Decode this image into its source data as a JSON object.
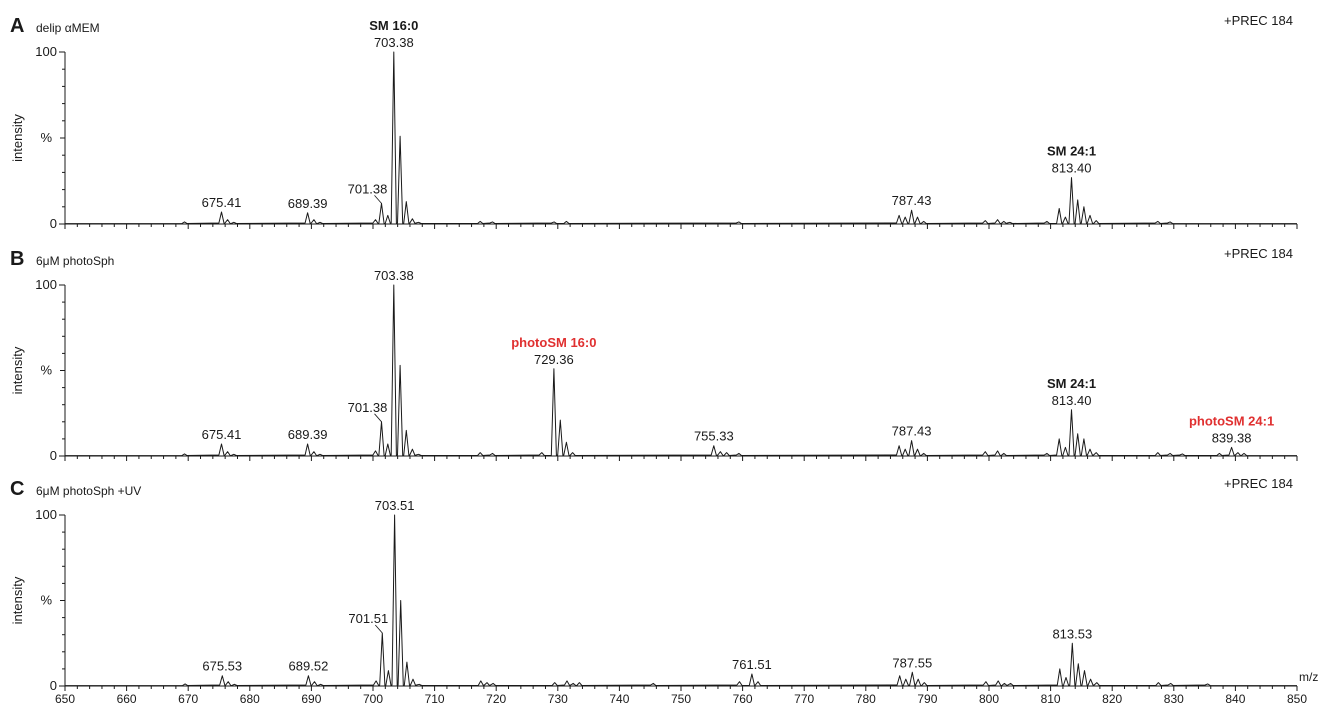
{
  "figure": {
    "xlabel": "m/z",
    "ylabel": "intensity",
    "ytick_labels": [
      "0",
      "%",
      "100"
    ],
    "x_ticks": [
      650,
      660,
      670,
      680,
      690,
      700,
      710,
      720,
      730,
      740,
      750,
      760,
      770,
      780,
      790,
      800,
      810,
      820,
      830,
      840,
      850
    ]
  },
  "colors": {
    "trace": "#1a1a1a",
    "text": "#1a1a1a",
    "highlight": "#e03030"
  },
  "chart_data": [
    {
      "type": "line",
      "panel_letter": "A",
      "sample_label": "delip αMEM",
      "scan_label": "+PREC 184",
      "xlim": [
        650,
        850
      ],
      "ylim": [
        0,
        100
      ],
      "peaks": [
        {
          "mz": 669.4,
          "y": 1.2
        },
        {
          "mz": 675.41,
          "y": 7
        },
        {
          "mz": 676.4,
          "y": 2.5
        },
        {
          "mz": 677.4,
          "y": 1
        },
        {
          "mz": 689.39,
          "y": 6.5
        },
        {
          "mz": 690.4,
          "y": 2.5
        },
        {
          "mz": 691.4,
          "y": 1
        },
        {
          "mz": 700.4,
          "y": 2.5
        },
        {
          "mz": 701.38,
          "y": 12
        },
        {
          "mz": 702.4,
          "y": 5
        },
        {
          "mz": 703.38,
          "y": 100
        },
        {
          "mz": 704.4,
          "y": 51
        },
        {
          "mz": 705.4,
          "y": 13
        },
        {
          "mz": 706.4,
          "y": 3
        },
        {
          "mz": 707.4,
          "y": 1
        },
        {
          "mz": 717.4,
          "y": 1.5
        },
        {
          "mz": 719.4,
          "y": 1.2
        },
        {
          "mz": 729.4,
          "y": 1.2
        },
        {
          "mz": 731.4,
          "y": 1.5
        },
        {
          "mz": 759.4,
          "y": 1.2
        },
        {
          "mz": 785.4,
          "y": 5
        },
        {
          "mz": 786.4,
          "y": 4
        },
        {
          "mz": 787.43,
          "y": 8
        },
        {
          "mz": 788.4,
          "y": 4
        },
        {
          "mz": 789.4,
          "y": 1.5
        },
        {
          "mz": 799.4,
          "y": 2
        },
        {
          "mz": 801.4,
          "y": 2.5
        },
        {
          "mz": 802.4,
          "y": 1.5
        },
        {
          "mz": 803.4,
          "y": 1
        },
        {
          "mz": 809.4,
          "y": 1.5
        },
        {
          "mz": 811.4,
          "y": 9
        },
        {
          "mz": 812.4,
          "y": 4
        },
        {
          "mz": 813.4,
          "y": 27
        },
        {
          "mz": 814.4,
          "y": 14
        },
        {
          "mz": 815.4,
          "y": 10
        },
        {
          "mz": 816.4,
          "y": 5
        },
        {
          "mz": 817.4,
          "y": 2
        },
        {
          "mz": 827.4,
          "y": 1.5
        },
        {
          "mz": 829.4,
          "y": 1.2
        }
      ],
      "annotations": [
        {
          "label": "",
          "value": "675.41",
          "mz": 675.41,
          "y": 7,
          "color": "#1a1a1a"
        },
        {
          "label": "",
          "value": "689.39",
          "mz": 689.39,
          "y": 6.5,
          "color": "#1a1a1a"
        },
        {
          "label": "",
          "value": "701.38",
          "mz": 701.38,
          "y": 12,
          "color": "#1a1a1a",
          "leader": true
        },
        {
          "label": "SM 16:0",
          "value": "703.38",
          "mz": 703.38,
          "y": 100,
          "color": "#1a1a1a"
        },
        {
          "label": "",
          "value": "787.43",
          "mz": 787.43,
          "y": 8,
          "color": "#1a1a1a"
        },
        {
          "label": "SM 24:1",
          "value": "813.40",
          "mz": 813.4,
          "y": 27,
          "color": "#1a1a1a"
        }
      ]
    },
    {
      "type": "line",
      "panel_letter": "B",
      "sample_label": "6μM photoSph",
      "scan_label": "+PREC 184",
      "xlim": [
        650,
        850
      ],
      "ylim": [
        0,
        100
      ],
      "peaks": [
        {
          "mz": 669.4,
          "y": 1.2
        },
        {
          "mz": 675.41,
          "y": 7
        },
        {
          "mz": 676.4,
          "y": 2.5
        },
        {
          "mz": 677.4,
          "y": 1
        },
        {
          "mz": 689.39,
          "y": 7
        },
        {
          "mz": 690.4,
          "y": 2.5
        },
        {
          "mz": 691.4,
          "y": 1
        },
        {
          "mz": 700.4,
          "y": 3
        },
        {
          "mz": 701.38,
          "y": 20
        },
        {
          "mz": 702.4,
          "y": 7
        },
        {
          "mz": 703.38,
          "y": 100
        },
        {
          "mz": 704.4,
          "y": 53
        },
        {
          "mz": 705.4,
          "y": 15
        },
        {
          "mz": 706.4,
          "y": 4
        },
        {
          "mz": 707.4,
          "y": 1
        },
        {
          "mz": 717.4,
          "y": 2
        },
        {
          "mz": 719.4,
          "y": 1.5
        },
        {
          "mz": 727.4,
          "y": 2
        },
        {
          "mz": 729.36,
          "y": 51
        },
        {
          "mz": 730.4,
          "y": 21
        },
        {
          "mz": 731.4,
          "y": 8
        },
        {
          "mz": 732.4,
          "y": 2
        },
        {
          "mz": 755.33,
          "y": 6
        },
        {
          "mz": 756.4,
          "y": 2.5
        },
        {
          "mz": 757.4,
          "y": 2
        },
        {
          "mz": 759.4,
          "y": 1.5
        },
        {
          "mz": 785.4,
          "y": 6
        },
        {
          "mz": 786.4,
          "y": 4
        },
        {
          "mz": 787.43,
          "y": 9
        },
        {
          "mz": 788.4,
          "y": 4
        },
        {
          "mz": 789.4,
          "y": 1.5
        },
        {
          "mz": 799.4,
          "y": 2.5
        },
        {
          "mz": 801.4,
          "y": 3
        },
        {
          "mz": 802.4,
          "y": 1.5
        },
        {
          "mz": 809.4,
          "y": 1.5
        },
        {
          "mz": 811.4,
          "y": 10
        },
        {
          "mz": 812.4,
          "y": 5
        },
        {
          "mz": 813.4,
          "y": 27
        },
        {
          "mz": 814.4,
          "y": 13
        },
        {
          "mz": 815.4,
          "y": 10
        },
        {
          "mz": 816.4,
          "y": 4
        },
        {
          "mz": 817.4,
          "y": 2
        },
        {
          "mz": 827.4,
          "y": 2
        },
        {
          "mz": 829.4,
          "y": 1.5
        },
        {
          "mz": 831.4,
          "y": 1.2
        },
        {
          "mz": 837.4,
          "y": 1.5
        },
        {
          "mz": 839.38,
          "y": 5
        },
        {
          "mz": 840.4,
          "y": 2
        },
        {
          "mz": 841.4,
          "y": 1.5
        }
      ],
      "annotations": [
        {
          "label": "",
          "value": "675.41",
          "mz": 675.41,
          "y": 7,
          "color": "#1a1a1a"
        },
        {
          "label": "",
          "value": "689.39",
          "mz": 689.39,
          "y": 7,
          "color": "#1a1a1a"
        },
        {
          "label": "",
          "value": "701.38",
          "mz": 701.38,
          "y": 20,
          "color": "#1a1a1a",
          "leader": true
        },
        {
          "label": "",
          "value": "703.38",
          "mz": 703.38,
          "y": 100,
          "color": "#1a1a1a"
        },
        {
          "label": "photoSM 16:0",
          "value": "729.36",
          "mz": 729.36,
          "y": 51,
          "color": "#e03030"
        },
        {
          "label": "",
          "value": "755.33",
          "mz": 755.33,
          "y": 6,
          "color": "#1a1a1a"
        },
        {
          "label": "",
          "value": "787.43",
          "mz": 787.43,
          "y": 9,
          "color": "#1a1a1a"
        },
        {
          "label": "SM 24:1",
          "value": "813.40",
          "mz": 813.4,
          "y": 27,
          "color": "#1a1a1a"
        },
        {
          "label": "photoSM 24:1",
          "value": "839.38",
          "mz": 839.38,
          "y": 5,
          "color": "#e03030"
        }
      ]
    },
    {
      "type": "line",
      "panel_letter": "C",
      "sample_label": "6μM photoSph +UV",
      "scan_label": "+PREC 184",
      "xlim": [
        650,
        850
      ],
      "ylim": [
        0,
        100
      ],
      "peaks": [
        {
          "mz": 669.5,
          "y": 1.2
        },
        {
          "mz": 675.53,
          "y": 6
        },
        {
          "mz": 676.5,
          "y": 2.5
        },
        {
          "mz": 677.5,
          "y": 1
        },
        {
          "mz": 689.52,
          "y": 6
        },
        {
          "mz": 690.5,
          "y": 2.5
        },
        {
          "mz": 691.5,
          "y": 1
        },
        {
          "mz": 700.5,
          "y": 3
        },
        {
          "mz": 701.51,
          "y": 31
        },
        {
          "mz": 702.5,
          "y": 9
        },
        {
          "mz": 703.51,
          "y": 100
        },
        {
          "mz": 704.5,
          "y": 50
        },
        {
          "mz": 705.5,
          "y": 14
        },
        {
          "mz": 706.5,
          "y": 4
        },
        {
          "mz": 707.5,
          "y": 1
        },
        {
          "mz": 717.5,
          "y": 3
        },
        {
          "mz": 718.5,
          "y": 2
        },
        {
          "mz": 719.5,
          "y": 1.5
        },
        {
          "mz": 729.5,
          "y": 2
        },
        {
          "mz": 731.5,
          "y": 3
        },
        {
          "mz": 732.5,
          "y": 1.5
        },
        {
          "mz": 733.5,
          "y": 2
        },
        {
          "mz": 745.5,
          "y": 1.5
        },
        {
          "mz": 759.5,
          "y": 2.5
        },
        {
          "mz": 761.51,
          "y": 7
        },
        {
          "mz": 762.5,
          "y": 2.5
        },
        {
          "mz": 785.5,
          "y": 6
        },
        {
          "mz": 786.5,
          "y": 4
        },
        {
          "mz": 787.55,
          "y": 8
        },
        {
          "mz": 788.5,
          "y": 4
        },
        {
          "mz": 789.5,
          "y": 2
        },
        {
          "mz": 799.5,
          "y": 2.5
        },
        {
          "mz": 801.5,
          "y": 3
        },
        {
          "mz": 802.5,
          "y": 1.5
        },
        {
          "mz": 803.5,
          "y": 1.5
        },
        {
          "mz": 811.5,
          "y": 10
        },
        {
          "mz": 812.5,
          "y": 5
        },
        {
          "mz": 813.53,
          "y": 25
        },
        {
          "mz": 814.5,
          "y": 13
        },
        {
          "mz": 815.5,
          "y": 9
        },
        {
          "mz": 816.5,
          "y": 4
        },
        {
          "mz": 817.5,
          "y": 2
        },
        {
          "mz": 827.5,
          "y": 2
        },
        {
          "mz": 829.5,
          "y": 1.5
        },
        {
          "mz": 835.5,
          "y": 1.2
        }
      ],
      "annotations": [
        {
          "label": "",
          "value": "675.53",
          "mz": 675.53,
          "y": 6,
          "color": "#1a1a1a"
        },
        {
          "label": "",
          "value": "689.52",
          "mz": 689.52,
          "y": 6,
          "color": "#1a1a1a"
        },
        {
          "label": "",
          "value": "701.51",
          "mz": 701.51,
          "y": 31,
          "color": "#1a1a1a",
          "leader": true
        },
        {
          "label": "",
          "value": "703.51",
          "mz": 703.51,
          "y": 100,
          "color": "#1a1a1a"
        },
        {
          "label": "",
          "value": "761.51",
          "mz": 761.51,
          "y": 7,
          "color": "#1a1a1a"
        },
        {
          "label": "",
          "value": "787.55",
          "mz": 787.55,
          "y": 8,
          "color": "#1a1a1a"
        },
        {
          "label": "",
          "value": "813.53",
          "mz": 813.53,
          "y": 25,
          "color": "#1a1a1a"
        }
      ]
    }
  ]
}
